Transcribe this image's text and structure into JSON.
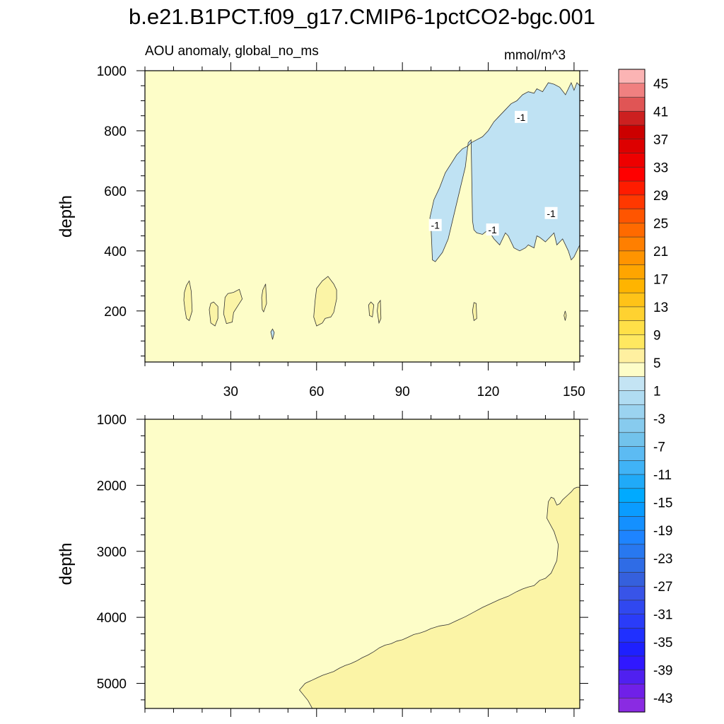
{
  "title": "b.e21.B1PCT.f09_g17.CMIP6-1pctCO2-bgc.001",
  "chart_data": {
    "type": "contour",
    "subtitle": "AOU anomaly, global_no_ms",
    "units": "mmol/m^3",
    "x": {
      "range": [
        0,
        152
      ],
      "ticks": [
        30,
        60,
        90,
        120,
        150
      ]
    },
    "panels": [
      {
        "name": "upper",
        "ylabel": "depth",
        "yrange": [
          1000,
          30
        ],
        "yticks": [
          200,
          400,
          600,
          800,
          1000
        ],
        "regions": [
          {
            "label": "-1",
            "interval": [
              -3,
              -1
            ],
            "color": "#bfe2f3",
            "points": [
              [
                99.6,
                510
              ],
              [
                100,
                480
              ],
              [
                100.5,
                370
              ],
              [
                101.5,
                364
              ],
              [
                104,
                395
              ],
              [
                106,
                440
              ],
              [
                108,
                520
              ],
              [
                110,
                600
              ],
              [
                112,
                680
              ],
              [
                113,
                760
              ],
              [
                114,
                770
              ],
              [
                114.5,
                500
              ],
              [
                115,
                470
              ],
              [
                116,
                460
              ],
              [
                118,
                455
              ],
              [
                120,
                470
              ],
              [
                122,
                440
              ],
              [
                124,
                420
              ],
              [
                126,
                460
              ],
              [
                127,
                450
              ],
              [
                129,
                410
              ],
              [
                131,
                400
              ],
              [
                133,
                410
              ],
              [
                134,
                420
              ],
              [
                136,
                410
              ],
              [
                137,
                450
              ],
              [
                138,
                445
              ],
              [
                140,
                430
              ],
              [
                142,
                450
              ],
              [
                143,
                460
              ],
              [
                144,
                420
              ],
              [
                146,
                440
              ],
              [
                147,
                420
              ],
              [
                148,
                400
              ],
              [
                149,
                370
              ],
              [
                150,
                380
              ],
              [
                152,
                420
              ],
              [
                152,
                950
              ],
              [
                151,
                960
              ],
              [
                150,
                935
              ],
              [
                149,
                960
              ],
              [
                147,
                920
              ],
              [
                145,
                945
              ],
              [
                143,
                955
              ],
              [
                141,
                960
              ],
              [
                139,
                930
              ],
              [
                137,
                940
              ],
              [
                136,
                925
              ],
              [
                134,
                930
              ],
              [
                132,
                920
              ],
              [
                130,
                900
              ],
              [
                128,
                890
              ],
              [
                126,
                870
              ],
              [
                124,
                850
              ],
              [
                122,
                830
              ],
              [
                120,
                800
              ],
              [
                118,
                780
              ],
              [
                116,
                770
              ],
              [
                114,
                760
              ],
              [
                113,
                750
              ],
              [
                111,
                740
              ],
              [
                109,
                720
              ],
              [
                107,
                690
              ],
              [
                105,
                660
              ],
              [
                103,
                610
              ],
              [
                101,
                570
              ]
            ]
          },
          {
            "label": "",
            "interval": [
              1,
              5
            ],
            "color": "#fbf4a6",
            "points": [
              [
                13.6,
                236
              ],
              [
                14,
                205
              ],
              [
                14.5,
                175
              ],
              [
                15.5,
                168
              ],
              [
                16.5,
                200
              ],
              [
                16.2,
                265
              ],
              [
                15.5,
                300
              ],
              [
                14.5,
                285
              ],
              [
                13.8,
                262
              ]
            ]
          },
          {
            "label": "",
            "interval": [
              1,
              5
            ],
            "color": "#fbf4a6",
            "points": [
              [
                22.5,
                205
              ],
              [
                23,
                160
              ],
              [
                24.5,
                150
              ],
              [
                25.5,
                175
              ],
              [
                25.5,
                215
              ],
              [
                24,
                230
              ],
              [
                23,
                225
              ]
            ]
          },
          {
            "label": "",
            "interval": [
              1,
              5
            ],
            "color": "#fbf4a6",
            "points": [
              [
                28,
                245
              ],
              [
                27.5,
                190
              ],
              [
                28.5,
                158
              ],
              [
                30.5,
                163
              ],
              [
                31,
                195
              ],
              [
                33,
                225
              ],
              [
                34,
                240
              ],
              [
                33,
                272
              ],
              [
                31,
                262
              ],
              [
                29,
                258
              ]
            ]
          },
          {
            "label": "",
            "interval": [
              1,
              5
            ],
            "color": "#fbf4a6",
            "points": [
              [
                40.8,
                245
              ],
              [
                41,
                205
              ],
              [
                41.5,
                197
              ],
              [
                42.5,
                225
              ],
              [
                42.2,
                290
              ],
              [
                41.2,
                270
              ]
            ]
          },
          {
            "label": "",
            "interval": [
              1,
              5
            ],
            "color": "#fbf4a6",
            "points": [
              [
                59.5,
                235
              ],
              [
                59,
                180
              ],
              [
                60,
                150
              ],
              [
                62,
                160
              ],
              [
                63,
                175
              ],
              [
                65,
                180
              ],
              [
                66,
                195
              ],
              [
                67,
                240
              ],
              [
                67,
                270
              ],
              [
                66,
                290
              ],
              [
                64,
                315
              ],
              [
                62,
                300
              ],
              [
                60,
                275
              ]
            ]
          },
          {
            "label": "",
            "interval": [
              1,
              5
            ],
            "color": "#fbf4a6",
            "points": [
              [
                78.2,
                220
              ],
              [
                78.5,
                185
              ],
              [
                79.5,
                180
              ],
              [
                80,
                220
              ],
              [
                79,
                230
              ]
            ]
          },
          {
            "label": "",
            "interval": [
              1,
              5
            ],
            "color": "#fbf4a6",
            "points": [
              [
                81.2,
                200
              ],
              [
                81.8,
                160
              ],
              [
                82.5,
                175
              ],
              [
                82.3,
                235
              ],
              [
                81.5,
                225
              ]
            ]
          },
          {
            "label": "",
            "interval": [
              1,
              5
            ],
            "color": "#fbf4a6",
            "points": [
              [
                114.5,
                200
              ],
              [
                115,
                168
              ],
              [
                116,
                175
              ],
              [
                115.8,
                225
              ],
              [
                115,
                228
              ]
            ]
          },
          {
            "label": "",
            "interval": [
              1,
              5
            ],
            "color": "#fbf4a6",
            "points": [
              [
                146.5,
                185
              ],
              [
                146.9,
                168
              ],
              [
                147.3,
                185
              ],
              [
                146.9,
                200
              ]
            ]
          },
          {
            "label": "",
            "interval": [
              -3,
              -1
            ],
            "color": "#bfe2f3",
            "points": [
              [
                44,
                130
              ],
              [
                44.6,
                105
              ],
              [
                45.2,
                128
              ],
              [
                44.6,
                140
              ]
            ]
          }
        ],
        "contour_labels": [
          {
            "text": "-1",
            "x": 101.5,
            "y": 485
          },
          {
            "text": "-1",
            "x": 121.5,
            "y": 470
          },
          {
            "text": "-1",
            "x": 142,
            "y": 525
          },
          {
            "text": "-1",
            "x": 131.5,
            "y": 845
          }
        ]
      },
      {
        "name": "lower",
        "ylabel": "depth",
        "yrange": [
          1000,
          5380
        ],
        "yticks": [
          1000,
          2000,
          3000,
          4000,
          5000
        ],
        "regions": [
          {
            "label": "",
            "interval": [
              1,
              5
            ],
            "color": "#fbf4a6",
            "points": [
              [
                58.5,
                5380
              ],
              [
                57,
                5260
              ],
              [
                54,
                5100
              ],
              [
                56,
                5000
              ],
              [
                57,
                4980
              ],
              [
                58,
                4960
              ],
              [
                60,
                4920
              ],
              [
                62,
                4880
              ],
              [
                64,
                4850
              ],
              [
                66,
                4820
              ],
              [
                68,
                4770
              ],
              [
                70,
                4730
              ],
              [
                72,
                4700
              ],
              [
                74,
                4660
              ],
              [
                76,
                4610
              ],
              [
                78,
                4570
              ],
              [
                80,
                4520
              ],
              [
                82,
                4460
              ],
              [
                84,
                4420
              ],
              [
                86,
                4400
              ],
              [
                88,
                4360
              ],
              [
                90,
                4340
              ],
              [
                92,
                4300
              ],
              [
                94,
                4260
              ],
              [
                96,
                4240
              ],
              [
                98,
                4210
              ],
              [
                100,
                4170
              ],
              [
                103,
                4130
              ],
              [
                106,
                4110
              ],
              [
                109,
                4050
              ],
              [
                112,
                3990
              ],
              [
                115,
                3920
              ],
              [
                118,
                3850
              ],
              [
                121,
                3790
              ],
              [
                124,
                3730
              ],
              [
                127,
                3680
              ],
              [
                130,
                3610
              ],
              [
                132,
                3570
              ],
              [
                134,
                3540
              ],
              [
                136,
                3520
              ],
              [
                138,
                3440
              ],
              [
                140,
                3410
              ],
              [
                142,
                3330
              ],
              [
                144,
                3140
              ],
              [
                144.5,
                2900
              ],
              [
                143,
                2700
              ],
              [
                140.5,
                2500
              ],
              [
                141,
                2250
              ],
              [
                142,
                2180
              ],
              [
                143,
                2200
              ],
              [
                144,
                2300
              ],
              [
                145,
                2280
              ],
              [
                146,
                2220
              ],
              [
                148,
                2140
              ],
              [
                149,
                2100
              ],
              [
                150,
                2050
              ],
              [
                151,
                2030
              ],
              [
                152,
                2030
              ],
              [
                152,
                5380
              ]
            ]
          }
        ],
        "contour_labels": []
      }
    ],
    "background": {
      "interval": [
        -1,
        1
      ],
      "color": "#fdfdc8"
    },
    "colorbar": {
      "colors": [
        "#fbb4b4",
        "#f08080",
        "#e05555",
        "#cc2020",
        "#cc0000",
        "#dd0000",
        "#ee0000",
        "#ff0000",
        "#ff1c00",
        "#ff3800",
        "#ff5500",
        "#ff6a00",
        "#ff7f00",
        "#ff9400",
        "#ffa500",
        "#ffb400",
        "#ffc318",
        "#ffd230",
        "#ffe048",
        "#ffe860",
        "#fff0a0",
        "#fdfdc8",
        "#c4e4f4",
        "#b0dcf2",
        "#9bd3f0",
        "#87cbee",
        "#72c3ec",
        "#5cbbf3",
        "#40b3f6",
        "#20aaf8",
        "#00aaff",
        "#0a9cff",
        "#1490ff",
        "#1e84ff",
        "#2878f0",
        "#2f6ce6",
        "#3560dd",
        "#3854e8",
        "#3048f0",
        "#2a3cf8",
        "#2030ff",
        "#1e20ff",
        "#3018ff",
        "#5020f0",
        "#7020e8",
        "#8a2be2"
      ],
      "labels": [
        "45",
        "41",
        "37",
        "33",
        "29",
        "25",
        "21",
        "17",
        "13",
        "9",
        "5",
        "1",
        "-3",
        "-7",
        "-11",
        "-15",
        "-19",
        "-23",
        "-27",
        "-31",
        "-35",
        "-39",
        "-43"
      ]
    }
  }
}
